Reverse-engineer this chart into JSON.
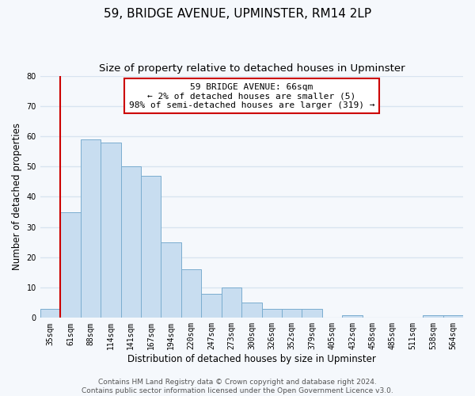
{
  "title": "59, BRIDGE AVENUE, UPMINSTER, RM14 2LP",
  "subtitle": "Size of property relative to detached houses in Upminster",
  "xlabel": "Distribution of detached houses by size in Upminster",
  "ylabel": "Number of detached properties",
  "categories": [
    "35sqm",
    "61sqm",
    "88sqm",
    "114sqm",
    "141sqm",
    "167sqm",
    "194sqm",
    "220sqm",
    "247sqm",
    "273sqm",
    "300sqm",
    "326sqm",
    "352sqm",
    "379sqm",
    "405sqm",
    "432sqm",
    "458sqm",
    "485sqm",
    "511sqm",
    "538sqm",
    "564sqm"
  ],
  "values": [
    3,
    35,
    59,
    58,
    50,
    47,
    25,
    16,
    8,
    10,
    5,
    3,
    3,
    3,
    0,
    1,
    0,
    0,
    0,
    1,
    1
  ],
  "bar_color": "#c8ddf0",
  "bar_edge_color": "#7aadcf",
  "reference_line_color": "#cc0000",
  "ylim": [
    0,
    80
  ],
  "yticks": [
    0,
    10,
    20,
    30,
    40,
    50,
    60,
    70,
    80
  ],
  "annotation_title": "59 BRIDGE AVENUE: 66sqm",
  "annotation_line1": "← 2% of detached houses are smaller (5)",
  "annotation_line2": "98% of semi-detached houses are larger (319) →",
  "annotation_box_color": "#ffffff",
  "annotation_box_edge_color": "#cc0000",
  "footer_line1": "Contains HM Land Registry data © Crown copyright and database right 2024.",
  "footer_line2": "Contains public sector information licensed under the Open Government Licence v3.0.",
  "background_color": "#f5f8fc",
  "grid_color": "#d8e4f0",
  "title_fontsize": 11,
  "subtitle_fontsize": 9.5,
  "axis_label_fontsize": 8.5,
  "tick_fontsize": 7,
  "annotation_fontsize": 8,
  "footer_fontsize": 6.5
}
